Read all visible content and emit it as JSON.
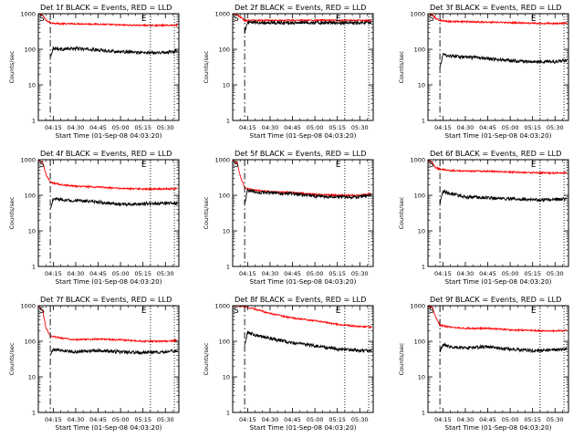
{
  "chart_data": [
    {
      "type": "line",
      "title": "Det 1f BLACK = Events, RED = LLD",
      "xlabel": "Start Time (01-Sep-08 04:03:20)",
      "ylabel": "Counts/sec",
      "yscale": "log",
      "ylim": [
        1,
        1000
      ],
      "xlim": [
        "04:05",
        "05:39"
      ],
      "xticks": [
        "04:15",
        "04:30",
        "04:45",
        "05:00",
        "05:15",
        "05:30"
      ],
      "yticks": [
        "1",
        "10",
        "100",
        "1000"
      ],
      "markers": {
        "start": "S",
        "end": "E",
        "dashdot_at": "04:13",
        "dotted_at": [
          "05:20",
          "05:36"
        ]
      },
      "series": [
        {
          "name": "LLD",
          "color": "#ff0000",
          "x": [
            "04:05",
            "04:08",
            "04:10",
            "04:13",
            "04:20",
            "04:30",
            "04:45",
            "05:00",
            "05:15",
            "05:30",
            "05:38"
          ],
          "values": [
            1000,
            900,
            650,
            560,
            520,
            520,
            510,
            480,
            470,
            470,
            480
          ]
        },
        {
          "name": "Events",
          "color": "#000000",
          "x": [
            "04:13",
            "04:15",
            "04:20",
            "04:30",
            "04:45",
            "05:00",
            "05:15",
            "05:30",
            "05:38"
          ],
          "values": [
            60,
            110,
            100,
            105,
            95,
            85,
            80,
            82,
            90
          ]
        }
      ]
    },
    {
      "type": "line",
      "title": "Det 2f BLACK = Events, RED = LLD",
      "xlabel": "Start Time (01-Sep-08 04:03:20)",
      "ylabel": "Counts/sec",
      "yscale": "log",
      "ylim": [
        1,
        1000
      ],
      "xlim": [
        "04:05",
        "05:39"
      ],
      "xticks": [
        "04:15",
        "04:30",
        "04:45",
        "05:00",
        "05:15",
        "05:30"
      ],
      "yticks": [
        "1",
        "10",
        "100",
        "1000"
      ],
      "markers": {
        "start": "S",
        "end": "E",
        "dashdot_at": "04:13",
        "dotted_at": [
          "05:20",
          "05:36"
        ]
      },
      "series": [
        {
          "name": "LLD",
          "color": "#ff0000",
          "x": [
            "04:05",
            "04:08",
            "04:11",
            "04:13",
            "04:20",
            "04:30",
            "04:45",
            "05:00",
            "05:15",
            "05:30",
            "05:38"
          ],
          "values": [
            1000,
            950,
            750,
            640,
            650,
            650,
            650,
            650,
            650,
            650,
            640
          ]
        },
        {
          "name": "Events",
          "color": "#000000",
          "x": [
            "04:13",
            "04:15",
            "04:20",
            "04:30",
            "04:45",
            "05:00",
            "05:15",
            "05:30",
            "05:38"
          ],
          "values": [
            300,
            560,
            560,
            560,
            560,
            560,
            560,
            560,
            560
          ]
        }
      ]
    },
    {
      "type": "line",
      "title": "Det 3f BLACK = Events, RED = LLD",
      "xlabel": "Start Time (01-Sep-08 04:03:20)",
      "ylabel": "Counts/sec",
      "yscale": "log",
      "ylim": [
        1,
        1000
      ],
      "xlim": [
        "04:05",
        "05:39"
      ],
      "xticks": [
        "04:15",
        "04:30",
        "04:45",
        "05:00",
        "05:15",
        "05:30"
      ],
      "yticks": [
        "1",
        "10",
        "100",
        "1000"
      ],
      "markers": {
        "start": "S",
        "end": "E",
        "dashdot_at": "04:13",
        "dotted_at": [
          "05:20",
          "05:36"
        ]
      },
      "series": [
        {
          "name": "LLD",
          "color": "#ff0000",
          "x": [
            "04:05",
            "04:08",
            "04:10",
            "04:13",
            "04:20",
            "04:30",
            "04:45",
            "05:00",
            "05:15",
            "05:30",
            "05:38"
          ],
          "values": [
            1000,
            900,
            750,
            650,
            600,
            600,
            580,
            560,
            540,
            530,
            540
          ]
        },
        {
          "name": "Events",
          "color": "#000000",
          "x": [
            "04:13",
            "04:15",
            "04:20",
            "04:30",
            "04:45",
            "05:00",
            "05:15",
            "05:30",
            "05:38"
          ],
          "values": [
            30,
            70,
            65,
            60,
            55,
            48,
            44,
            45,
            50
          ]
        }
      ]
    },
    {
      "type": "line",
      "title": "Det 4f BLACK = Events, RED = LLD",
      "xlabel": "Start Time (01-Sep-08 04:03:20)",
      "ylabel": "Counts/sec",
      "yscale": "log",
      "ylim": [
        1,
        1000
      ],
      "xlim": [
        "04:05",
        "05:39"
      ],
      "xticks": [
        "04:15",
        "04:30",
        "04:45",
        "05:00",
        "05:15",
        "05:30"
      ],
      "yticks": [
        "1",
        "10",
        "100",
        "1000"
      ],
      "markers": {
        "start": "S",
        "end": "E",
        "dashdot_at": "04:13",
        "dotted_at": [
          "05:20",
          "05:36"
        ]
      },
      "series": [
        {
          "name": "LLD",
          "color": "#ff0000",
          "x": [
            "04:05",
            "04:08",
            "04:10",
            "04:13",
            "04:20",
            "04:30",
            "04:45",
            "05:00",
            "05:15",
            "05:30",
            "05:38"
          ],
          "values": [
            1000,
            800,
            400,
            230,
            200,
            180,
            170,
            155,
            150,
            150,
            155
          ]
        },
        {
          "name": "Events",
          "color": "#000000",
          "x": [
            "04:13",
            "04:15",
            "04:20",
            "04:30",
            "04:45",
            "05:00",
            "05:15",
            "05:30",
            "05:38"
          ],
          "values": [
            40,
            80,
            75,
            70,
            65,
            55,
            58,
            60,
            60
          ]
        }
      ]
    },
    {
      "type": "line",
      "title": "Det 5f BLACK = Events, RED = LLD",
      "xlabel": "Start Time (01-Sep-08 04:03:20)",
      "ylabel": "Counts/sec",
      "yscale": "log",
      "ylim": [
        1,
        1000
      ],
      "xlim": [
        "04:05",
        "05:39"
      ],
      "xticks": [
        "04:15",
        "04:30",
        "04:45",
        "05:00",
        "05:15",
        "05:30"
      ],
      "yticks": [
        "1",
        "10",
        "100",
        "1000"
      ],
      "markers": {
        "start": "S",
        "end": "E",
        "dashdot_at": "04:13",
        "dotted_at": [
          "05:20",
          "05:36"
        ]
      },
      "series": [
        {
          "name": "LLD",
          "color": "#ff0000",
          "x": [
            "04:05",
            "04:08",
            "04:10",
            "04:13",
            "04:20",
            "04:30",
            "04:45",
            "05:00",
            "05:15",
            "05:30",
            "05:38"
          ],
          "values": [
            1000,
            800,
            350,
            160,
            140,
            125,
            120,
            105,
            100,
            100,
            110
          ]
        },
        {
          "name": "Events",
          "color": "#000000",
          "x": [
            "04:13",
            "04:15",
            "04:20",
            "04:30",
            "04:45",
            "05:00",
            "05:15",
            "05:30",
            "05:38"
          ],
          "values": [
            60,
            140,
            125,
            115,
            110,
            95,
            90,
            90,
            100
          ]
        }
      ]
    },
    {
      "type": "line",
      "title": "Det 6f BLACK = Events, RED = LLD",
      "xlabel": "Start Time (01-Sep-08 04:03:20)",
      "ylabel": "Counts/sec",
      "yscale": "log",
      "ylim": [
        1,
        1000
      ],
      "xlim": [
        "04:05",
        "05:39"
      ],
      "xticks": [
        "04:15",
        "04:30",
        "04:45",
        "05:00",
        "05:15",
        "05:30"
      ],
      "yticks": [
        "1",
        "10",
        "100",
        "1000"
      ],
      "markers": {
        "start": "S",
        "end": "E",
        "dashdot_at": "04:13",
        "dotted_at": [
          "05:20",
          "05:36"
        ]
      },
      "series": [
        {
          "name": "LLD",
          "color": "#ff0000",
          "x": [
            "04:05",
            "04:08",
            "04:10",
            "04:13",
            "04:20",
            "04:30",
            "04:45",
            "05:00",
            "05:15",
            "05:30",
            "05:38"
          ],
          "values": [
            1000,
            800,
            600,
            550,
            500,
            480,
            470,
            450,
            430,
            420,
            430
          ]
        },
        {
          "name": "Events",
          "color": "#000000",
          "x": [
            "04:13",
            "04:15",
            "04:20",
            "04:30",
            "04:45",
            "05:00",
            "05:15",
            "05:30",
            "05:38"
          ],
          "values": [
            60,
            130,
            110,
            90,
            85,
            80,
            75,
            75,
            80
          ]
        }
      ]
    },
    {
      "type": "line",
      "title": "Det 7f BLACK = Events, RED = LLD",
      "xlabel": "Start Time (01-Sep-08 04:03:20)",
      "ylabel": "Counts/sec",
      "yscale": "log",
      "ylim": [
        1,
        1000
      ],
      "xlim": [
        "04:05",
        "05:39"
      ],
      "xticks": [
        "04:15",
        "04:30",
        "04:45",
        "05:00",
        "05:15",
        "05:30"
      ],
      "yticks": [
        "1",
        "10",
        "100",
        "1000"
      ],
      "markers": {
        "start": "S",
        "end": "E",
        "dashdot_at": "04:13",
        "dotted_at": [
          "05:20",
          "05:36"
        ]
      },
      "series": [
        {
          "name": "LLD",
          "color": "#ff0000",
          "x": [
            "04:05",
            "04:08",
            "04:10",
            "04:13",
            "04:20",
            "04:30",
            "04:45",
            "05:00",
            "05:15",
            "05:30",
            "05:38"
          ],
          "values": [
            1000,
            700,
            250,
            140,
            125,
            110,
            115,
            110,
            100,
            100,
            105
          ]
        },
        {
          "name": "Events",
          "color": "#000000",
          "x": [
            "04:13",
            "04:15",
            "04:20",
            "04:30",
            "04:45",
            "05:00",
            "05:15",
            "05:30",
            "05:38"
          ],
          "values": [
            40,
            60,
            55,
            50,
            55,
            50,
            48,
            50,
            55
          ]
        }
      ]
    },
    {
      "type": "line",
      "title": "Det 8f BLACK = Events, RED = LLD",
      "xlabel": "Start Time (01-Sep-08 04:03:20)",
      "ylabel": "Counts/sec",
      "yscale": "log",
      "ylim": [
        1,
        1000
      ],
      "xlim": [
        "04:05",
        "05:39"
      ],
      "xticks": [
        "04:15",
        "04:30",
        "04:45",
        "05:00",
        "05:15",
        "05:30"
      ],
      "yticks": [
        "1",
        "10",
        "100",
        "1000"
      ],
      "markers": {
        "start": "S",
        "end": "E",
        "dashdot_at": "04:13",
        "dotted_at": [
          "05:20",
          "05:36"
        ]
      },
      "series": [
        {
          "name": "LLD",
          "color": "#ff0000",
          "x": [
            "04:05",
            "04:08",
            "04:10",
            "04:13",
            "04:20",
            "04:30",
            "04:45",
            "05:00",
            "05:15",
            "05:30",
            "05:38"
          ],
          "values": [
            1000,
            1000,
            1000,
            950,
            800,
            600,
            450,
            380,
            300,
            260,
            250
          ]
        },
        {
          "name": "Events",
          "color": "#000000",
          "x": [
            "04:13",
            "04:15",
            "04:20",
            "04:30",
            "04:45",
            "05:00",
            "05:15",
            "05:30",
            "05:38"
          ],
          "values": [
            80,
            180,
            150,
            120,
            90,
            75,
            60,
            55,
            55
          ]
        }
      ]
    },
    {
      "type": "line",
      "title": "Det 9f BLACK = Events, RED = LLD",
      "xlabel": "Start Time (01-Sep-08 04:03:20)",
      "ylabel": "Counts/sec",
      "yscale": "log",
      "ylim": [
        1,
        1000
      ],
      "xlim": [
        "04:05",
        "05:39"
      ],
      "xticks": [
        "04:15",
        "04:30",
        "04:45",
        "05:00",
        "05:15",
        "05:30"
      ],
      "yticks": [
        "1",
        "10",
        "100",
        "1000"
      ],
      "markers": {
        "start": "S",
        "end": "E",
        "dashdot_at": "04:13",
        "dotted_at": [
          "05:20",
          "05:36"
        ]
      },
      "series": [
        {
          "name": "LLD",
          "color": "#ff0000",
          "x": [
            "04:05",
            "04:08",
            "04:10",
            "04:13",
            "04:20",
            "04:30",
            "04:45",
            "05:00",
            "05:15",
            "05:30",
            "05:38"
          ],
          "values": [
            1000,
            900,
            500,
            280,
            250,
            230,
            230,
            210,
            200,
            195,
            200
          ]
        },
        {
          "name": "Events",
          "color": "#000000",
          "x": [
            "04:13",
            "04:15",
            "04:20",
            "04:30",
            "04:45",
            "05:00",
            "05:15",
            "05:30",
            "05:38"
          ],
          "values": [
            50,
            80,
            70,
            65,
            70,
            60,
            55,
            58,
            60
          ]
        }
      ]
    }
  ]
}
